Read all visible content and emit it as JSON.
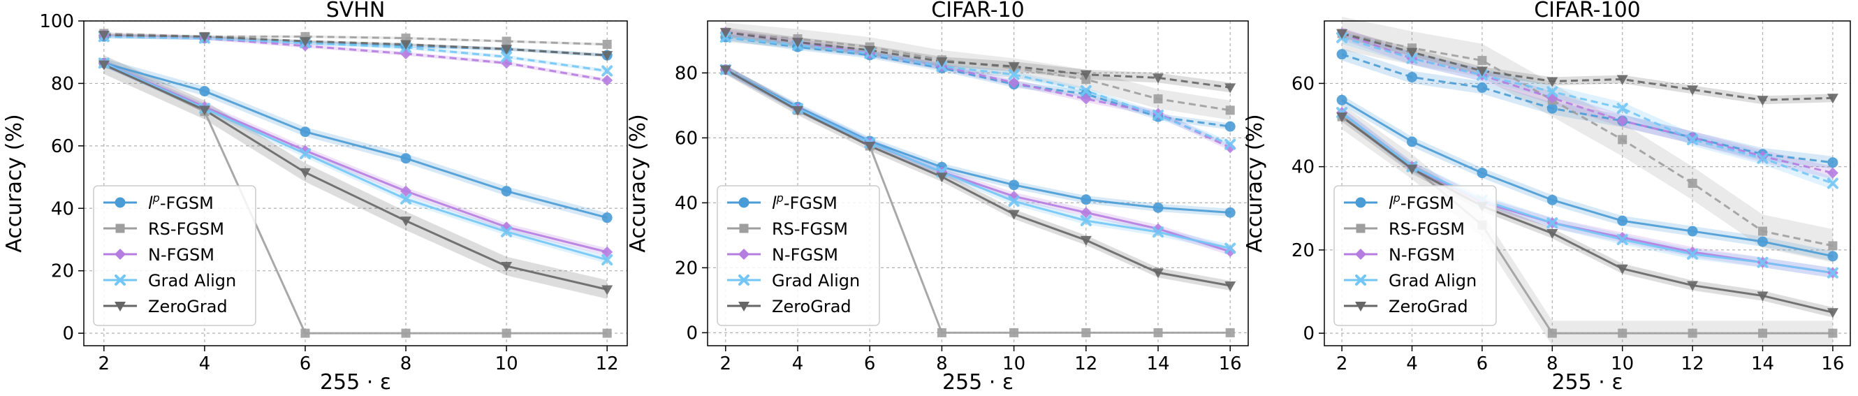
{
  "colors": {
    "lp": "#4a9cd6",
    "rs": "#9e9e9e",
    "n": "#b57de0",
    "ga": "#72c6f5",
    "zg": "#666666"
  },
  "legend_labels": {
    "lp_prefix": "l",
    "lp_sup": "p",
    "lp_suffix": "-FGSM",
    "rs": "RS-FGSM",
    "n": "N-FGSM",
    "ga": "Grad Align",
    "zg": "ZeroGrad"
  },
  "chart_data": [
    {
      "type": "line",
      "title": "SVHN",
      "xlabel": "255 · ε",
      "ylabel": "Accuracy (%)",
      "x": [
        2,
        4,
        6,
        8,
        10,
        12
      ],
      "xlim": [
        1.6,
        12.4
      ],
      "ylim": [
        -4,
        100
      ],
      "yticks": [
        0,
        20,
        40,
        60,
        80,
        100
      ],
      "grid": true,
      "legend": "lower-left",
      "series": [
        {
          "key": "lp",
          "name": "lp-FGSM",
          "metric": "robust",
          "values": [
            86.5,
            77.5,
            64.5,
            56,
            45.5,
            37
          ],
          "band": 1.5
        },
        {
          "key": "rs",
          "name": "RS-FGSM",
          "metric": "robust",
          "values": [
            86.5,
            71,
            0,
            0,
            0,
            0
          ],
          "band": 0
        },
        {
          "key": "n",
          "name": "N-FGSM",
          "metric": "robust",
          "values": [
            86.5,
            72.5,
            58.5,
            45.5,
            34,
            26
          ],
          "band": 1.2
        },
        {
          "key": "ga",
          "name": "Grad Align",
          "metric": "robust",
          "values": [
            86.5,
            72,
            57.5,
            43,
            32.5,
            23.5
          ],
          "band": 1.2
        },
        {
          "key": "zg",
          "name": "ZeroGrad",
          "metric": "robust",
          "values": [
            86,
            71.5,
            51.5,
            36,
            21.5,
            14
          ],
          "band": 3
        },
        {
          "key": "lp",
          "metric": "clean",
          "values": [
            95,
            94.5,
            93,
            92,
            91,
            89
          ],
          "band": 0.6
        },
        {
          "key": "rs",
          "metric": "clean",
          "values": [
            96,
            95,
            95,
            94.5,
            93.5,
            92.5
          ],
          "band": 0.4
        },
        {
          "key": "n",
          "metric": "clean",
          "values": [
            95.5,
            94.5,
            92,
            89.5,
            86.5,
            81
          ],
          "band": 0.6
        },
        {
          "key": "ga",
          "metric": "clean",
          "values": [
            95,
            94.5,
            93,
            91.5,
            88.5,
            84
          ],
          "band": 0.6
        },
        {
          "key": "zg",
          "metric": "clean",
          "values": [
            95.5,
            95,
            93.5,
            92.5,
            91,
            89
          ],
          "band": 0.4
        }
      ]
    },
    {
      "type": "line",
      "title": "CIFAR-10",
      "xlabel": "255 · ε",
      "ylabel": "Accuracy (%)",
      "x": [
        2,
        4,
        6,
        8,
        10,
        12,
        14,
        16
      ],
      "xlim": [
        1.5,
        16.5
      ],
      "ylim": [
        -4,
        96
      ],
      "yticks": [
        0,
        20,
        40,
        60,
        80
      ],
      "grid": true,
      "legend": "lower-left",
      "series": [
        {
          "key": "lp",
          "name": "lp-FGSM",
          "metric": "robust",
          "values": [
            81,
            69.5,
            59,
            51,
            45.5,
            41,
            38.5,
            37
          ],
          "band": 1.2
        },
        {
          "key": "rs",
          "name": "RS-FGSM",
          "metric": "robust",
          "values": [
            81,
            68.5,
            57.5,
            0,
            0,
            0,
            0,
            0
          ],
          "band": 0
        },
        {
          "key": "n",
          "name": "N-FGSM",
          "metric": "robust",
          "values": [
            81,
            69,
            58.5,
            49.5,
            42,
            37,
            32,
            25
          ],
          "band": 1.2
        },
        {
          "key": "ga",
          "name": "Grad Align",
          "metric": "robust",
          "values": [
            81,
            69,
            58.5,
            49.5,
            40.5,
            34.5,
            31,
            26
          ],
          "band": 1.2
        },
        {
          "key": "zg",
          "name": "ZeroGrad",
          "metric": "robust",
          "values": [
            81,
            68.5,
            57.5,
            48,
            36.5,
            28.5,
            18.5,
            14.5
          ],
          "band": 1.5
        },
        {
          "key": "lp",
          "metric": "clean",
          "values": [
            91,
            88,
            85.5,
            81.5,
            76.5,
            73.5,
            66.5,
            63.5
          ],
          "band": 1
        },
        {
          "key": "rs",
          "metric": "clean",
          "values": [
            92.5,
            90.5,
            88,
            84,
            81.5,
            78,
            72,
            68.5
          ],
          "band": 3
        },
        {
          "key": "n",
          "metric": "clean",
          "values": [
            92.5,
            89.5,
            86,
            82,
            77,
            72,
            67.5,
            57
          ],
          "band": 1
        },
        {
          "key": "ga",
          "metric": "clean",
          "values": [
            91,
            88.5,
            86,
            82,
            79.5,
            74.5,
            67,
            58
          ],
          "band": 1
        },
        {
          "key": "zg",
          "metric": "clean",
          "values": [
            92.5,
            89.5,
            87,
            83.5,
            82,
            79.5,
            78.5,
            75.5
          ],
          "band": 1.5
        }
      ]
    },
    {
      "type": "line",
      "title": "CIFAR-100",
      "xlabel": "255 · ε",
      "ylabel": "Accuracy (%)",
      "x": [
        2,
        4,
        6,
        8,
        10,
        12,
        14,
        16
      ],
      "xlim": [
        1.5,
        16.5
      ],
      "ylim": [
        -3,
        75
      ],
      "yticks": [
        0,
        20,
        40,
        60
      ],
      "grid": true,
      "legend": "lower-left",
      "series": [
        {
          "key": "lp",
          "name": "lp-FGSM",
          "metric": "robust",
          "values": [
            56,
            46,
            38.5,
            32,
            27,
            24.5,
            22,
            18.5
          ],
          "band": 1.2
        },
        {
          "key": "rs",
          "name": "RS-FGSM",
          "metric": "robust",
          "values": [
            52,
            40,
            26,
            0,
            0,
            0,
            0,
            0
          ],
          "band": 3
        },
        {
          "key": "n",
          "name": "N-FGSM",
          "metric": "robust",
          "values": [
            53,
            40,
            31.5,
            26.5,
            23,
            19.5,
            17,
            14.5
          ],
          "band": 1.2
        },
        {
          "key": "ga",
          "name": "Grad Align",
          "metric": "robust",
          "values": [
            53,
            40,
            32,
            26.5,
            22.5,
            19,
            17,
            14.5
          ],
          "band": 1.2
        },
        {
          "key": "zg",
          "name": "ZeroGrad",
          "metric": "robust",
          "values": [
            52,
            39.5,
            30.5,
            24,
            15.5,
            11.5,
            9,
            5
          ],
          "band": 1.2
        },
        {
          "key": "lp",
          "metric": "clean",
          "values": [
            67,
            61.5,
            59,
            54,
            51,
            47,
            43,
            41
          ],
          "band": 1.5
        },
        {
          "key": "rs",
          "metric": "clean",
          "values": [
            72,
            68.5,
            65.5,
            56,
            46.5,
            36,
            24.5,
            21
          ],
          "band": 4
        },
        {
          "key": "n",
          "metric": "clean",
          "values": [
            72,
            66,
            62,
            56.5,
            51,
            47,
            42.5,
            38.5
          ],
          "band": 1.5
        },
        {
          "key": "ga",
          "metric": "clean",
          "values": [
            71,
            66,
            62,
            58,
            54,
            46.5,
            42,
            36
          ],
          "band": 1.5
        },
        {
          "key": "zg",
          "metric": "clean",
          "values": [
            72,
            67.5,
            63,
            60.5,
            61,
            58.5,
            56,
            56.5
          ],
          "band": 1
        }
      ]
    }
  ]
}
